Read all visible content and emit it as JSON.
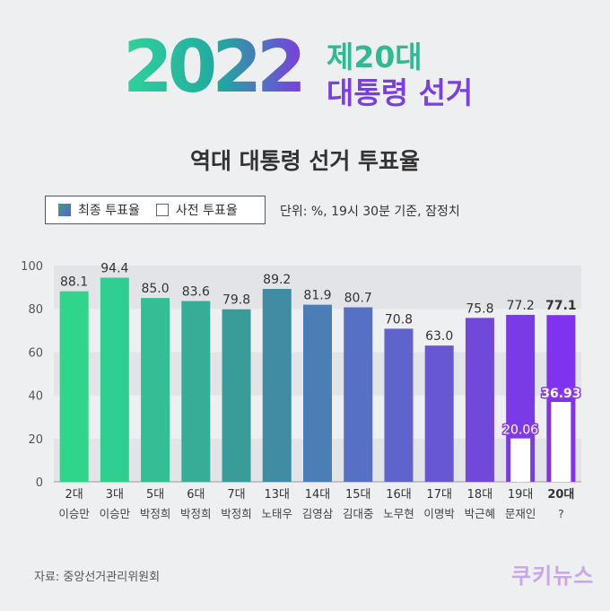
{
  "header": {
    "year": "2022",
    "election_line1": "제20대",
    "election_line2": "대통령 선거",
    "subtitle": "역대 대통령 선거 투표율"
  },
  "legend": {
    "final_label": "최종 투표율",
    "early_label": "사전 투표율"
  },
  "unit_note": "단위: %, 19시 30분 기준, 잠정치",
  "source": "자료: 중앙선거관리위원회",
  "logo": "쿠키뉴스",
  "chart_data": {
    "type": "bar",
    "title": "역대 대통령 선거 투표율",
    "categories": [
      "2대",
      "3대",
      "5대",
      "6대",
      "7대",
      "13대",
      "14대",
      "15대",
      "16대",
      "17대",
      "18대",
      "19대",
      "20대"
    ],
    "presidents": [
      "이승만",
      "이승만",
      "박정희",
      "박정희",
      "박정희",
      "노태우",
      "김영삼",
      "김대중",
      "노무현",
      "이명박",
      "박근혜",
      "문재인",
      "?"
    ],
    "series": [
      {
        "name": "최종 투표율",
        "values": [
          88.1,
          94.4,
          85.0,
          83.6,
          79.8,
          89.2,
          81.9,
          80.7,
          70.8,
          63.0,
          75.8,
          77.2,
          77.1
        ]
      },
      {
        "name": "사전 투표율",
        "values": [
          null,
          null,
          null,
          null,
          null,
          null,
          null,
          null,
          null,
          null,
          null,
          20.06,
          36.93
        ]
      }
    ],
    "ylim": [
      0,
      100
    ],
    "yticks": [
      0,
      20,
      40,
      60,
      80,
      100
    ],
    "grid": true,
    "legend_position": "top-left"
  }
}
